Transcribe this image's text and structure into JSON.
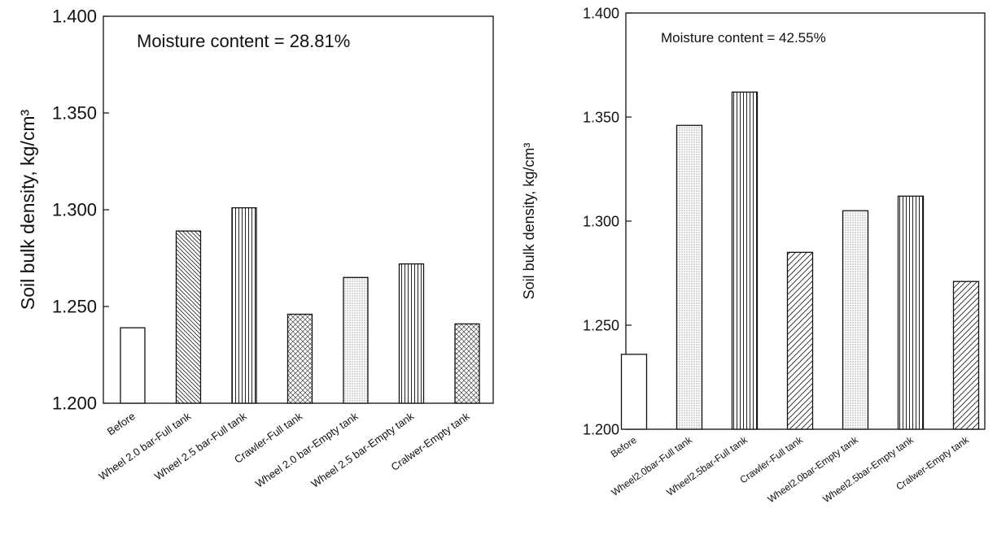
{
  "chart_data": [
    {
      "type": "bar",
      "ylabel": "Soil bulk density, kg/cm³",
      "annotation": "Moisture content = 28.81%",
      "ylim": [
        1.2,
        1.4
      ],
      "yticks": [
        "1.200",
        "1.250",
        "1.300",
        "1.350",
        "1.400"
      ],
      "categories": [
        "Before",
        "Wheel 2.0 bar-Full tank",
        "Wheel 2.5 bar-Full tank",
        "Crawler-Full tank",
        "Wheel 2.0 bar-Empty tank",
        "Wheel 2.5 bar-Empty tank",
        "Cralwer-Empty tank"
      ],
      "values": [
        1.239,
        1.289,
        1.301,
        1.246,
        1.265,
        1.272,
        1.241
      ],
      "patterns": [
        "none",
        "diag-back",
        "vertical",
        "cross",
        "dots",
        "vertical",
        "cross"
      ]
    },
    {
      "type": "bar",
      "ylabel": "Soil bulk density, kg/cm³",
      "annotation": "Moisture content = 42.55%",
      "ylim": [
        1.2,
        1.4
      ],
      "yticks": [
        "1.200",
        "1.250",
        "1.300",
        "1.350",
        "1.400"
      ],
      "categories": [
        "Before",
        "Wheel2.0bar-Full tank",
        "Wheel2.5bar-Full tank",
        "Crawler-Full tank",
        "Wheel2.0bar-Empty tank",
        "Wheel2.5bar-Empty tank",
        "Cralwer-Empty tank"
      ],
      "values": [
        1.236,
        1.346,
        1.362,
        1.285,
        1.305,
        1.312,
        1.271
      ],
      "patterns": [
        "none",
        "dots",
        "vertical",
        "diag-fwd",
        "dots",
        "vertical",
        "diag-fwd"
      ]
    }
  ]
}
